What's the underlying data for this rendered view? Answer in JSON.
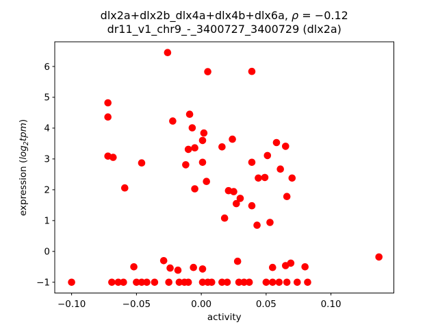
{
  "title": {
    "line1_prefix": "dlx2a+dlx2b_dlx4a+dlx4b+dlx6a, ",
    "line1_rho": "ρ",
    "line1_suffix": " = −0.12",
    "line2": "dr11_v1_chr9_-_3400727_3400729 (dlx2a)"
  },
  "ylabel_parts": {
    "prefix": "expression (",
    "log": "log",
    "sub": "2",
    "var": "tpm",
    "suffix": ")"
  },
  "chart_data": {
    "type": "scatter",
    "title": "dlx2a+dlx2b_dlx4a+dlx4b+dlx6a, ρ = −0.12",
    "subtitle": "dr11_v1_chr9_-_3400727_3400729 (dlx2a)",
    "xlabel": "activity",
    "ylabel": "expression (log2tpm)",
    "correlation_rho": -0.12,
    "marker_color": "#ff0000",
    "grid": false,
    "legend": "none",
    "xlim": [
      -0.113,
      0.1485
    ],
    "ylim": [
      -1.35,
      6.8
    ],
    "x_ticks": [
      -0.1,
      -0.05,
      0.0,
      0.05,
      0.1
    ],
    "y_ticks": [
      -1,
      0,
      1,
      2,
      3,
      4,
      5,
      6
    ],
    "points": [
      [
        -0.026,
        6.45
      ],
      [
        0.005,
        5.83
      ],
      [
        0.039,
        5.84
      ],
      [
        -0.072,
        4.82
      ],
      [
        -0.072,
        4.36
      ],
      [
        -0.009,
        4.45
      ],
      [
        -0.022,
        4.23
      ],
      [
        -0.007,
        4.01
      ],
      [
        0.002,
        3.84
      ],
      [
        0.001,
        3.6
      ],
      [
        0.024,
        3.64
      ],
      [
        0.058,
        3.53
      ],
      [
        0.065,
        3.41
      ],
      [
        0.016,
        3.39
      ],
      [
        -0.01,
        3.31
      ],
      [
        -0.005,
        3.36
      ],
      [
        -0.072,
        3.09
      ],
      [
        -0.068,
        3.05
      ],
      [
        -0.046,
        2.87
      ],
      [
        -0.012,
        2.81
      ],
      [
        0.001,
        2.89
      ],
      [
        0.039,
        2.89
      ],
      [
        0.051,
        3.11
      ],
      [
        0.061,
        2.67
      ],
      [
        0.044,
        2.38
      ],
      [
        0.049,
        2.4
      ],
      [
        0.07,
        2.38
      ],
      [
        0.004,
        2.27
      ],
      [
        -0.005,
        2.03
      ],
      [
        -0.059,
        2.06
      ],
      [
        0.021,
        1.97
      ],
      [
        0.025,
        1.94
      ],
      [
        0.03,
        1.72
      ],
      [
        0.027,
        1.55
      ],
      [
        0.039,
        1.48
      ],
      [
        0.066,
        1.78
      ],
      [
        0.018,
        1.08
      ],
      [
        0.053,
        0.94
      ],
      [
        0.043,
        0.85
      ],
      [
        -0.029,
        -0.3
      ],
      [
        -0.052,
        -0.5
      ],
      [
        -0.024,
        -0.54
      ],
      [
        -0.018,
        -0.61
      ],
      [
        -0.006,
        -0.52
      ],
      [
        0.001,
        -0.57
      ],
      [
        0.028,
        -0.32
      ],
      [
        0.055,
        -0.52
      ],
      [
        0.065,
        -0.46
      ],
      [
        0.069,
        -0.38
      ],
      [
        0.08,
        -0.5
      ],
      [
        0.137,
        -0.18
      ],
      [
        -0.1,
        -1
      ],
      [
        -0.069,
        -1
      ],
      [
        -0.064,
        -1
      ],
      [
        -0.06,
        -1
      ],
      [
        -0.05,
        -1
      ],
      [
        -0.046,
        -1
      ],
      [
        -0.042,
        -1
      ],
      [
        -0.036,
        -1
      ],
      [
        -0.025,
        -1
      ],
      [
        -0.017,
        -1
      ],
      [
        -0.013,
        -1
      ],
      [
        -0.01,
        -1
      ],
      [
        0.001,
        -1
      ],
      [
        0.005,
        -1
      ],
      [
        0.008,
        -1
      ],
      [
        0.016,
        -1
      ],
      [
        0.02,
        -1
      ],
      [
        0.029,
        -1
      ],
      [
        0.033,
        -1
      ],
      [
        0.037,
        -1
      ],
      [
        0.05,
        -1
      ],
      [
        0.055,
        -1
      ],
      [
        0.06,
        -1
      ],
      [
        0.066,
        -1
      ],
      [
        0.074,
        -1
      ],
      [
        0.082,
        -1
      ]
    ]
  }
}
